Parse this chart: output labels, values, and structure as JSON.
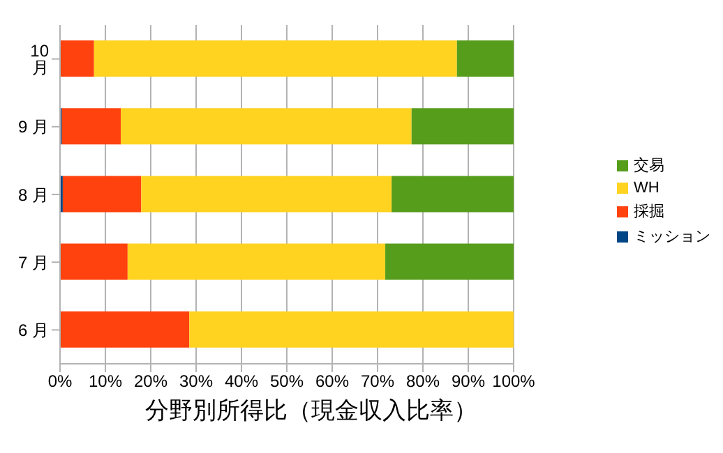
{
  "chart_data": {
    "type": "bar",
    "orientation": "horizontal",
    "stacked": true,
    "title": "分野別所得比（現金収入比率）",
    "categories": [
      "10 月",
      "9 月",
      "8 月",
      "7 月",
      "6 月"
    ],
    "series": [
      {
        "name": "ミッション",
        "color": "#004586",
        "values": [
          0,
          0.4,
          0.6,
          0,
          0
        ]
      },
      {
        "name": "採掘",
        "color": "#ff420e",
        "values": [
          7.5,
          13.0,
          17.3,
          14.9,
          28.5
        ]
      },
      {
        "name": "WH",
        "color": "#ffd320",
        "values": [
          80.0,
          64.1,
          55.2,
          56.8,
          71.5
        ]
      },
      {
        "name": "交易",
        "color": "#579d1c",
        "values": [
          12.5,
          22.5,
          26.9,
          28.3,
          0
        ]
      }
    ],
    "xlim": [
      0,
      100
    ],
    "xticks": [
      {
        "value": 0,
        "label": "0%"
      },
      {
        "value": 10,
        "label": "10%"
      },
      {
        "value": 20,
        "label": "20%"
      },
      {
        "value": 30,
        "label": "30%"
      },
      {
        "value": 40,
        "label": "40%"
      },
      {
        "value": 50,
        "label": "50%"
      },
      {
        "value": 60,
        "label": "60%"
      },
      {
        "value": 70,
        "label": "70%"
      },
      {
        "value": 80,
        "label": "80%"
      },
      {
        "value": 90,
        "label": "90%"
      },
      {
        "value": 100,
        "label": "100%"
      }
    ],
    "grid": "x",
    "legend": "right"
  }
}
